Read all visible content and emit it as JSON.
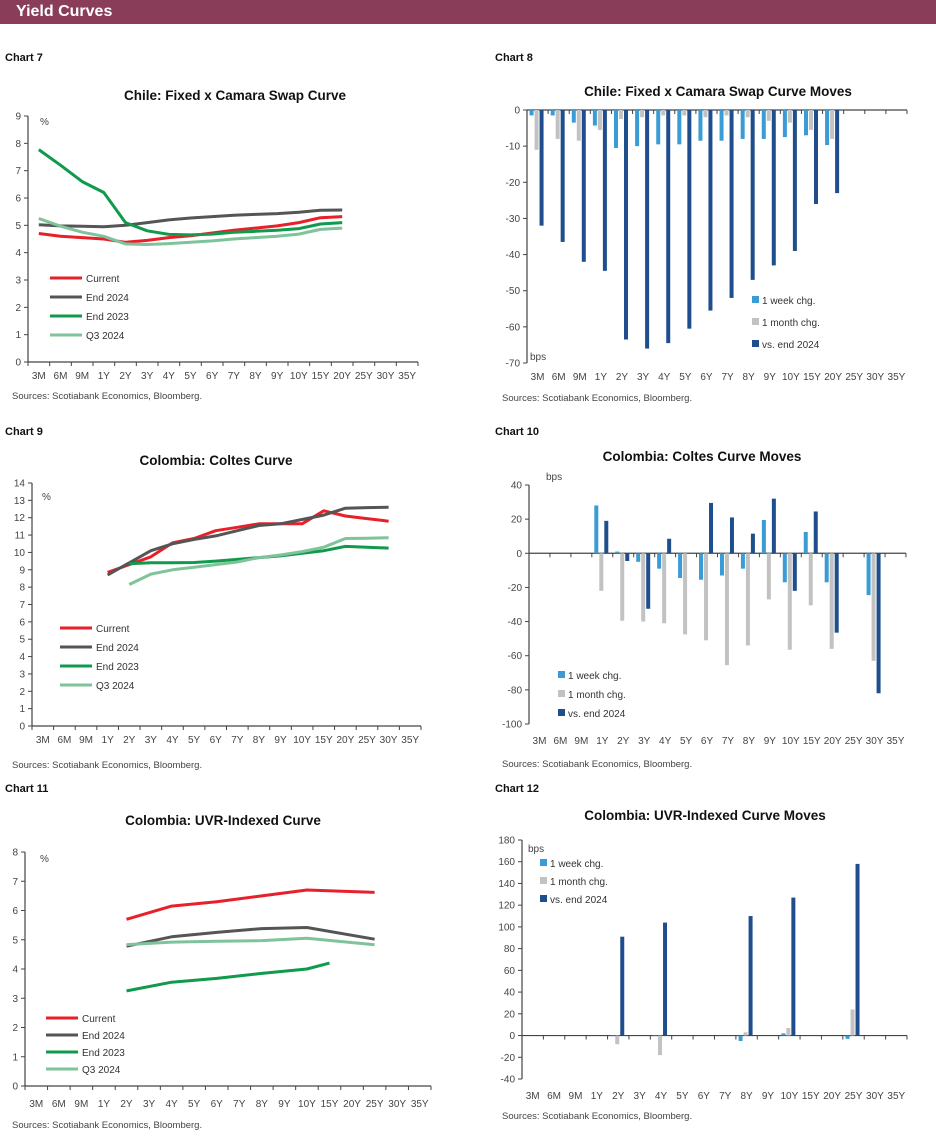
{
  "header": {
    "title": "Yield Curves"
  },
  "chart_labels": [
    "Chart 7",
    "Chart 8",
    "Chart 9",
    "Chart 10",
    "Chart 11",
    "Chart 12"
  ],
  "colors": {
    "header": "#8a3d58",
    "current": "#e8202a",
    "end_2024": "#555555",
    "end_2023": "#0f9a4c",
    "q3_2024": "#7fc39a",
    "week": "#3a9bd5",
    "month": "#c2c2c2",
    "vs_end_2024": "#1f4e8c"
  },
  "chart_data": [
    {
      "type": "line",
      "title": "Chile: Fixed x Camara Swap Curve",
      "unit": "%",
      "source": "Sources: Scotiabank Economics, Bloomberg.",
      "categories": [
        "3M",
        "6M",
        "9M",
        "1Y",
        "2Y",
        "3Y",
        "4Y",
        "5Y",
        "6Y",
        "7Y",
        "8Y",
        "9Y",
        "10Y",
        "15Y",
        "20Y",
        "25Y",
        "30Y",
        "35Y"
      ],
      "ylim": [
        0,
        9
      ],
      "yticks": [
        "0",
        "1",
        "2",
        "3",
        "4",
        "5",
        "6",
        "7",
        "8",
        "9"
      ],
      "legend": "bottom-left",
      "series": [
        {
          "name": "Current",
          "color": "#e8202a",
          "values": [
            4.7,
            4.6,
            4.55,
            4.5,
            4.38,
            4.45,
            4.55,
            4.62,
            4.72,
            4.82,
            4.9,
            4.98,
            5.1,
            5.28,
            5.32,
            null,
            null,
            null
          ]
        },
        {
          "name": "End 2024",
          "color": "#555555",
          "values": [
            5.02,
            4.98,
            4.97,
            4.95,
            5.0,
            5.1,
            5.2,
            5.27,
            5.32,
            5.37,
            5.4,
            5.43,
            5.48,
            5.55,
            5.56,
            null,
            null,
            null
          ]
        },
        {
          "name": "End 2023",
          "color": "#0f9a4c",
          "values": [
            7.77,
            7.2,
            6.6,
            6.2,
            5.1,
            4.8,
            4.67,
            4.65,
            4.68,
            4.75,
            4.78,
            4.82,
            4.88,
            5.05,
            5.1,
            null,
            null,
            null
          ]
        },
        {
          "name": "Q3 2024",
          "color": "#7fc39a",
          "values": [
            5.25,
            4.97,
            4.75,
            4.6,
            4.32,
            4.3,
            4.33,
            4.38,
            4.43,
            4.5,
            4.55,
            4.6,
            4.68,
            4.85,
            4.9,
            null,
            null,
            null
          ]
        }
      ]
    },
    {
      "type": "bar",
      "title": "Chile: Fixed x Camara Swap Curve Moves",
      "unit": "bps",
      "source": "Sources: Scotiabank Economics, Bloomberg.",
      "categories": [
        "3M",
        "6M",
        "9M",
        "1Y",
        "2Y",
        "3Y",
        "4Y",
        "5Y",
        "6Y",
        "7Y",
        "8Y",
        "9Y",
        "10Y",
        "15Y",
        "20Y",
        "25Y",
        "30Y",
        "35Y"
      ],
      "ylim": [
        -70,
        0
      ],
      "yticks": [
        "-70",
        "-60",
        "-50",
        "-40",
        "-30",
        "-20",
        "-10",
        "0"
      ],
      "legend": "bottom-right",
      "series": [
        {
          "name": "1 week chg.",
          "color": "#3a9bd5",
          "values": [
            -1.5,
            -1.5,
            -3.5,
            -4.3,
            -10.5,
            -10,
            -9.5,
            -9.5,
            -8.5,
            -8.5,
            -8,
            -8,
            -7.5,
            -7,
            -9.7,
            null,
            null,
            null
          ]
        },
        {
          "name": "1 month chg.",
          "color": "#c2c2c2",
          "values": [
            -11,
            -8,
            -8.5,
            -5.5,
            -2.5,
            -2,
            -1.5,
            -1.5,
            -2,
            -1.5,
            -2,
            -3,
            -3.5,
            -5.5,
            -8,
            null,
            null,
            null
          ]
        },
        {
          "name": "vs. end 2024",
          "color": "#1f4e8c",
          "values": [
            -32,
            -36.5,
            -42,
            -44.5,
            -63.5,
            -66,
            -64.5,
            -60.5,
            -55.5,
            -52,
            -47,
            -43,
            -39,
            -26,
            -23,
            null,
            null,
            null
          ]
        }
      ]
    },
    {
      "type": "line",
      "title": "Colombia: Coltes Curve",
      "unit": "%",
      "source": "Sources: Scotiabank Economics, Bloomberg.",
      "categories": [
        "3M",
        "6M",
        "9M",
        "1Y",
        "2Y",
        "3Y",
        "4Y",
        "5Y",
        "6Y",
        "7Y",
        "8Y",
        "9Y",
        "10Y",
        "15Y",
        "20Y",
        "25Y",
        "30Y",
        "35Y"
      ],
      "ylim": [
        0,
        14
      ],
      "yticks": [
        "0",
        "1",
        "2",
        "3",
        "4",
        "5",
        "6",
        "7",
        "8",
        "9",
        "10",
        "11",
        "12",
        "13",
        "14"
      ],
      "legend": "bottom-left",
      "series": [
        {
          "name": "Current",
          "color": "#e8202a",
          "values": [
            null,
            null,
            null,
            8.85,
            9.3,
            9.75,
            10.55,
            10.8,
            11.25,
            11.45,
            11.65,
            11.65,
            11.65,
            12.4,
            12.1,
            11.95,
            11.8,
            null
          ]
        },
        {
          "name": "End 2024",
          "color": "#555555",
          "values": [
            null,
            null,
            null,
            8.7,
            9.4,
            10.1,
            10.5,
            10.75,
            10.95,
            11.25,
            11.55,
            11.65,
            11.9,
            12.15,
            12.55,
            12.58,
            12.6,
            null
          ]
        },
        {
          "name": "End 2023",
          "color": "#0f9a4c",
          "values": [
            null,
            null,
            null,
            null,
            9.35,
            9.4,
            9.4,
            9.42,
            9.5,
            9.6,
            9.7,
            9.8,
            9.95,
            10.1,
            10.35,
            10.3,
            10.25,
            null
          ]
        },
        {
          "name": "Q3 2024",
          "color": "#7fc39a",
          "values": [
            null,
            null,
            null,
            null,
            8.15,
            8.75,
            9.0,
            9.15,
            9.3,
            9.45,
            9.7,
            9.85,
            10.05,
            10.3,
            10.8,
            10.82,
            10.85,
            null
          ]
        }
      ]
    },
    {
      "type": "bar",
      "title": "Colombia: Coltes Curve Moves",
      "unit": "bps",
      "source": "Sources: Scotiabank Economics, Bloomberg.",
      "categories": [
        "3M",
        "6M",
        "9M",
        "1Y",
        "2Y",
        "3Y",
        "4Y",
        "5Y",
        "6Y",
        "7Y",
        "8Y",
        "9Y",
        "10Y",
        "15Y",
        "20Y",
        "25Y",
        "30Y",
        "35Y"
      ],
      "ylim": [
        -100,
        40
      ],
      "yticks": [
        "-100",
        "-80",
        "-60",
        "-40",
        "-20",
        "0",
        "20",
        "40"
      ],
      "legend": "bottom-left",
      "series": [
        {
          "name": "1 week chg.",
          "color": "#3a9bd5",
          "values": [
            null,
            null,
            null,
            28,
            1,
            -5,
            -9,
            -14.5,
            -15.5,
            -13,
            -9,
            19.5,
            -17,
            12.5,
            -17,
            null,
            -24.5,
            null
          ]
        },
        {
          "name": "1 month chg.",
          "color": "#c2c2c2",
          "values": [
            null,
            null,
            null,
            -22,
            -39.5,
            -40,
            -41,
            -47.5,
            -51,
            -65.5,
            -54,
            -27,
            -56.5,
            -30.5,
            -56,
            null,
            -63,
            null
          ]
        },
        {
          "name": "vs. end 2024",
          "color": "#1f4e8c",
          "values": [
            null,
            null,
            null,
            19,
            -4.5,
            -32.5,
            8.5,
            null,
            29.5,
            21,
            11.5,
            32,
            -22,
            24.5,
            -46.5,
            null,
            -82,
            null
          ]
        }
      ]
    },
    {
      "type": "line",
      "title": "Colombia: UVR-Indexed Curve",
      "unit": "%",
      "source": "Sources: Scotiabank Economics, Bloomberg.",
      "categories": [
        "3M",
        "6M",
        "9M",
        "1Y",
        "2Y",
        "3Y",
        "4Y",
        "5Y",
        "6Y",
        "7Y",
        "8Y",
        "9Y",
        "10Y",
        "15Y",
        "20Y",
        "25Y",
        "30Y",
        "35Y"
      ],
      "ylim": [
        0,
        8
      ],
      "yticks": [
        "0",
        "1",
        "2",
        "3",
        "4",
        "5",
        "6",
        "7",
        "8"
      ],
      "legend": "bottom-left",
      "series": [
        {
          "name": "Current",
          "color": "#e8202a",
          "values": [
            null,
            null,
            null,
            null,
            5.7,
            null,
            6.15,
            null,
            6.3,
            null,
            6.5,
            null,
            6.7,
            null,
            null,
            6.62,
            null,
            null
          ]
        },
        {
          "name": "End 2024",
          "color": "#555555",
          "values": [
            null,
            null,
            null,
            null,
            4.78,
            null,
            5.1,
            null,
            5.25,
            null,
            5.38,
            null,
            5.42,
            null,
            null,
            5.02,
            null,
            null
          ]
        },
        {
          "name": "End 2023",
          "color": "#0f9a4c",
          "values": [
            null,
            null,
            null,
            null,
            3.25,
            null,
            3.55,
            null,
            3.68,
            null,
            3.85,
            null,
            4.0,
            4.2,
            null,
            null,
            null,
            null
          ]
        },
        {
          "name": "Q3 2024",
          "color": "#7fc39a",
          "values": [
            null,
            null,
            null,
            null,
            4.83,
            null,
            4.92,
            null,
            4.95,
            null,
            4.97,
            null,
            5.05,
            null,
            null,
            4.83,
            null,
            null
          ]
        }
      ]
    },
    {
      "type": "bar",
      "title": "Colombia: UVR-Indexed Curve Moves",
      "unit": "bps",
      "source": "Sources: Scotiabank Economics, Bloomberg.",
      "categories": [
        "3M",
        "6M",
        "9M",
        "1Y",
        "2Y",
        "3Y",
        "4Y",
        "5Y",
        "6Y",
        "7Y",
        "8Y",
        "9Y",
        "10Y",
        "15Y",
        "20Y",
        "25Y",
        "30Y",
        "35Y"
      ],
      "ylim": [
        -40,
        180
      ],
      "yticks": [
        "-40",
        "-20",
        "0",
        "20",
        "40",
        "60",
        "80",
        "100",
        "120",
        "140",
        "160",
        "180"
      ],
      "legend": "top-left",
      "series": [
        {
          "name": "1 week chg.",
          "color": "#3a9bd5",
          "values": [
            null,
            null,
            null,
            null,
            0,
            null,
            0,
            null,
            null,
            null,
            -5,
            null,
            2,
            null,
            null,
            -3,
            null,
            null
          ]
        },
        {
          "name": "1 month chg.",
          "color": "#c2c2c2",
          "values": [
            null,
            null,
            null,
            null,
            -8,
            null,
            -18,
            null,
            null,
            null,
            3,
            null,
            7,
            null,
            null,
            24,
            null,
            null
          ]
        },
        {
          "name": "vs. end 2024",
          "color": "#1f4e8c",
          "values": [
            null,
            null,
            null,
            null,
            91,
            null,
            104,
            null,
            null,
            null,
            110,
            null,
            127,
            null,
            null,
            158,
            null,
            null
          ]
        }
      ]
    }
  ]
}
